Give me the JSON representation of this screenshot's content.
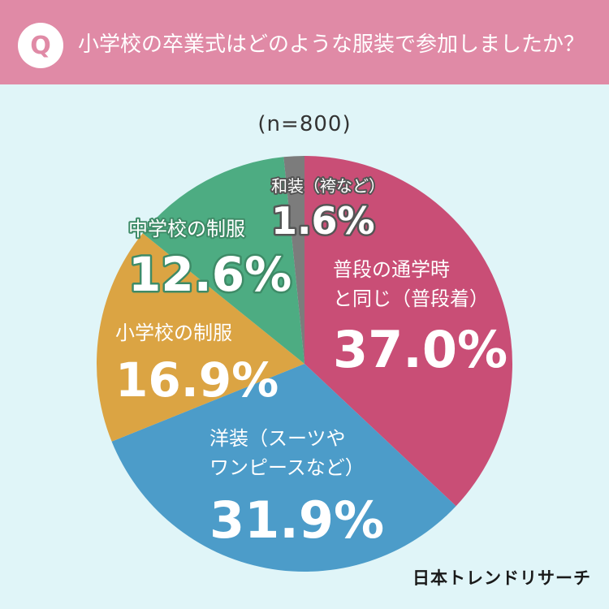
{
  "header": {
    "badge": "Q",
    "question": "小学校の卒業式はどのような服装で参加しましたか？"
  },
  "sample_size": "(n=800)",
  "brand": "日本トレンドリサーチ",
  "colors": {
    "header_bg": "#e08aa6",
    "page_bg": "#e0f5f8"
  },
  "chart_data": {
    "type": "pie",
    "title": "小学校の卒業式はどのような服装で参加しましたか？",
    "subtitle": "(n=800)",
    "slices": [
      {
        "label_lines": [
          "普段の通学時",
          "と同じ（普段着）"
        ],
        "value": 37.0,
        "display": "37.0%",
        "color": "#c94e76"
      },
      {
        "label_lines": [
          "洋装（スーツや",
          "ワンピースなど）"
        ],
        "value": 31.9,
        "display": "31.9%",
        "color": "#4c9cc9"
      },
      {
        "label_lines": [
          "小学校の制服"
        ],
        "value": 16.9,
        "display": "16.9%",
        "color": "#dba443"
      },
      {
        "label_lines": [
          "中学校の制服"
        ],
        "value": 12.6,
        "display": "12.6%",
        "color": "#4dac82"
      },
      {
        "label_lines": [
          "和装（袴など）"
        ],
        "value": 1.6,
        "display": "1.6%",
        "color": "#7c7c7c"
      }
    ]
  }
}
